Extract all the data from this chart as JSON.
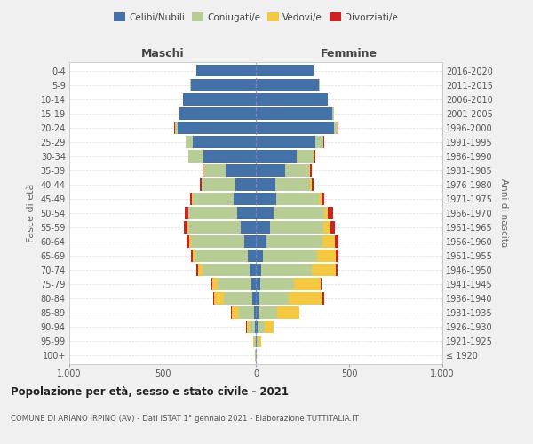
{
  "age_groups": [
    "100+",
    "95-99",
    "90-94",
    "85-89",
    "80-84",
    "75-79",
    "70-74",
    "65-69",
    "60-64",
    "55-59",
    "50-54",
    "45-49",
    "40-44",
    "35-39",
    "30-34",
    "25-29",
    "20-24",
    "15-19",
    "10-14",
    "5-9",
    "0-4"
  ],
  "birth_years": [
    "≤ 1920",
    "1921-1925",
    "1926-1930",
    "1931-1935",
    "1936-1940",
    "1941-1945",
    "1946-1950",
    "1951-1955",
    "1956-1960",
    "1961-1965",
    "1966-1970",
    "1971-1975",
    "1976-1980",
    "1981-1985",
    "1986-1990",
    "1991-1995",
    "1996-2000",
    "2001-2005",
    "2006-2010",
    "2011-2015",
    "2016-2020"
  ],
  "males": {
    "celibi": [
      2,
      2,
      5,
      10,
      20,
      25,
      35,
      45,
      60,
      80,
      100,
      120,
      110,
      160,
      280,
      340,
      420,
      410,
      390,
      350,
      320
    ],
    "coniugati": [
      2,
      8,
      30,
      80,
      150,
      180,
      250,
      280,
      290,
      280,
      260,
      220,
      180,
      120,
      80,
      35,
      15,
      5,
      2,
      1,
      1
    ],
    "vedovi": [
      1,
      3,
      15,
      40,
      55,
      30,
      25,
      15,
      8,
      5,
      3,
      2,
      1,
      1,
      1,
      1,
      0,
      0,
      0,
      0,
      0
    ],
    "divorziati": [
      0,
      0,
      1,
      2,
      5,
      5,
      8,
      10,
      15,
      20,
      20,
      10,
      8,
      5,
      3,
      2,
      1,
      0,
      0,
      0,
      0
    ]
  },
  "females": {
    "nubili": [
      2,
      3,
      8,
      12,
      18,
      22,
      30,
      40,
      55,
      75,
      95,
      110,
      105,
      155,
      220,
      320,
      420,
      410,
      385,
      340,
      310
    ],
    "coniugate": [
      2,
      12,
      40,
      100,
      160,
      185,
      270,
      290,
      300,
      285,
      270,
      230,
      185,
      130,
      90,
      40,
      18,
      8,
      3,
      1,
      1
    ],
    "vedove": [
      2,
      15,
      45,
      120,
      180,
      140,
      130,
      100,
      70,
      40,
      20,
      12,
      8,
      5,
      3,
      2,
      1,
      0,
      0,
      0,
      0
    ],
    "divorziate": [
      0,
      0,
      1,
      2,
      8,
      5,
      10,
      12,
      20,
      25,
      30,
      15,
      10,
      8,
      5,
      3,
      2,
      1,
      0,
      0,
      0
    ]
  },
  "colors": {
    "celibi_nubili": "#4472a8",
    "coniugati": "#b8cc96",
    "vedovi": "#f5c842",
    "divorziati": "#cc2222"
  },
  "title": "Popolazione per età, sesso e stato civile - 2021",
  "subtitle": "COMUNE DI ARIANO IRPINO (AV) - Dati ISTAT 1° gennaio 2021 - Elaborazione TUTTITALIA.IT",
  "xlabel_left": "Maschi",
  "xlabel_right": "Femmine",
  "ylabel_left": "Fasce di età",
  "ylabel_right": "Anni di nascita",
  "xlim": 1000,
  "bg_color": "#f0f0f0",
  "plot_bg": "#ffffff",
  "grid_color": "#cccccc"
}
